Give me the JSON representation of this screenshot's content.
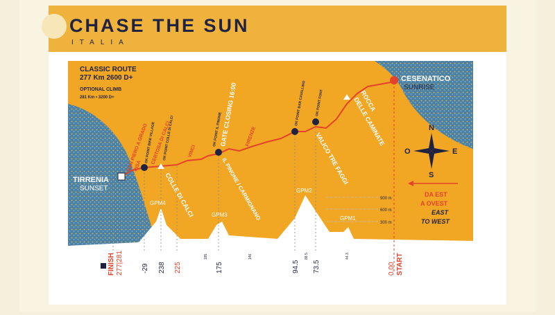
{
  "header": {
    "title": "CHASE THE SUN",
    "subtitle": "ITALIA"
  },
  "route": {
    "classic": "CLASSIC ROUTE",
    "classic_stats": "277 Km 2600 D+",
    "optional": "OPTIONAL CLIMB",
    "optional_stats": "281 Km • 3200 D+"
  },
  "start": {
    "name": "CESENATICO",
    "note": "SUNRISE"
  },
  "finish": {
    "name": "TIRRENIA",
    "note": "SUNSET"
  },
  "places": [
    "SAN PIERO A GRADO",
    "PISA",
    "CERTOSA DI CALCI",
    "OK POINT BIKE VILLAGE",
    "OK POINT COLLE DI CALCI",
    "VINCI",
    "OK POINT IL PINONE",
    "GATE CLOSING 16:00",
    "FIRENZE",
    "OK POINT BAR CAVALLINO",
    "OK POINT FONT",
    "ROCCA",
    "DELLE CAMINATE",
    "VALICO TRE FAGGI",
    "COLLE DI CALCI",
    "IL PINONE / CARMIGNANO"
  ],
  "gpm": [
    "GPM1",
    "GPM2",
    "GPM3",
    "GPM4"
  ],
  "altitudes": [
    "900 m",
    "600 m",
    "300 m"
  ],
  "km": [
    "FINISH",
    "277|281",
    "-29",
    "238",
    "225",
    "175",
    "94.5",
    "73.5",
    "0.00",
    "START",
    "185",
    "146",
    "88.5",
    "44.3"
  ],
  "compass": {
    "n": "N",
    "s": "S",
    "w": "O",
    "e": "E"
  },
  "direction": {
    "it_1": "DA EST",
    "it_2": "A OVEST",
    "en_1": "EAST",
    "en_2": "TO WEST"
  }
}
